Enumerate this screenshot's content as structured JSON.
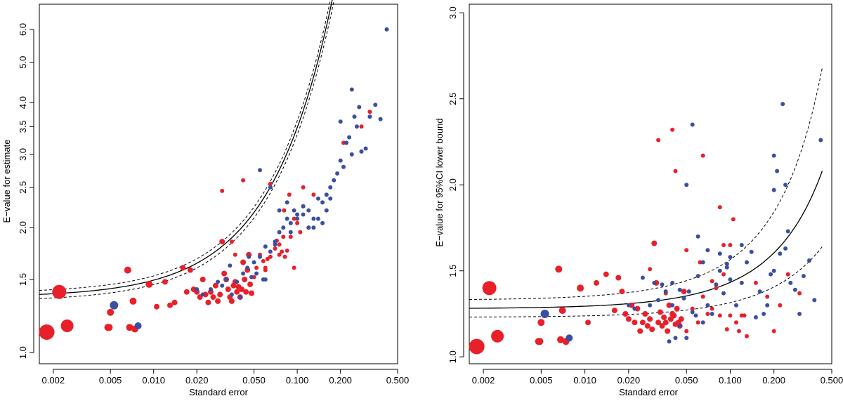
{
  "colors": {
    "red": "#e8202a",
    "blue": "#3a4fa0"
  },
  "chart_data": [
    {
      "type": "scatter",
      "title": "",
      "xlabel": "Standard error",
      "ylabel": "E−value for estimate",
      "x_scale": "log",
      "y_scale": "log",
      "xlim": [
        0.0016,
        0.5
      ],
      "ylim": [
        0.94,
        6.9
      ],
      "x_ticks": [
        0.002,
        0.005,
        0.01,
        0.02,
        0.05,
        0.1,
        0.2,
        0.5
      ],
      "x_tick_labels": [
        "0.002",
        "0.005",
        "0.010",
        "0.020",
        "0.050",
        "0.100",
        "0.200",
        "0.500"
      ],
      "y_ticks": [
        1.0,
        1.5,
        2.0,
        2.5,
        3.0,
        3.5,
        4.0,
        5.0,
        6.0
      ],
      "y_tick_labels": [
        "1.0",
        "1.5",
        "2.0",
        "2.5",
        "3.0",
        "3.5",
        "4.0",
        "5.0",
        "6.0"
      ],
      "fit": {
        "name": "fitted curve",
        "a": 1.36,
        "b": 9.4,
        "ci_width": 0.05
      },
      "series": [
        {
          "name": "red",
          "color": "red",
          "x": [
            0.0018,
            0.0022,
            0.0025,
            0.0048,
            0.005,
            0.0049,
            0.0066,
            0.0068,
            0.0072,
            0.0074,
            0.0093,
            0.0105,
            0.012,
            0.013,
            0.014,
            0.016,
            0.017,
            0.018,
            0.019,
            0.02,
            0.021,
            0.022,
            0.023,
            0.024,
            0.025,
            0.026,
            0.027,
            0.028,
            0.029,
            0.03,
            0.031,
            0.032,
            0.033,
            0.034,
            0.035,
            0.036,
            0.037,
            0.038,
            0.039,
            0.04,
            0.041,
            0.042,
            0.043,
            0.044,
            0.045,
            0.046,
            0.047,
            0.048,
            0.05,
            0.052,
            0.055,
            0.058,
            0.06,
            0.062,
            0.065,
            0.07,
            0.072,
            0.075,
            0.078,
            0.08,
            0.082,
            0.085,
            0.09,
            0.095,
            0.1,
            0.105,
            0.11,
            0.12,
            0.13,
            0.21,
            0.28,
            0.32,
            0.03,
            0.042,
            0.065,
            0.088,
            0.11,
            0.095,
            0.06,
            0.075,
            0.081,
            0.037,
            0.035
          ],
          "y": [
            1.12,
            1.4,
            1.16,
            1.15,
            1.25,
            1.15,
            1.58,
            1.15,
            1.33,
            1.14,
            1.46,
            1.29,
            1.48,
            1.3,
            1.32,
            1.6,
            1.4,
            1.58,
            1.42,
            1.4,
            1.36,
            1.5,
            1.38,
            1.32,
            1.4,
            1.36,
            1.45,
            1.33,
            1.38,
            1.85,
            1.55,
            1.5,
            1.42,
            1.36,
            1.33,
            1.45,
            1.48,
            1.4,
            1.44,
            1.36,
            1.42,
            1.65,
            1.5,
            1.4,
            1.58,
            1.72,
            1.46,
            1.39,
            1.52,
            1.6,
            1.72,
            1.66,
            1.6,
            1.68,
            1.7,
            1.78,
            1.86,
            1.82,
            1.75,
            1.9,
            1.7,
            1.76,
            1.9,
            1.6,
            2.05,
            1.95,
            2.25,
            2.0,
            2.4,
            3.2,
            3.5,
            3.8,
            2.45,
            2.6,
            2.55,
            2.4,
            2.5,
            2.1,
            1.58,
            1.72,
            2.2,
            1.72,
            1.85
          ],
          "size": [
            11,
            10,
            9,
            5,
            5,
            5,
            5,
            5,
            5,
            5,
            5,
            4,
            4,
            4,
            4,
            4,
            4,
            4,
            4,
            4,
            4,
            4,
            4,
            4,
            4,
            4,
            4,
            4,
            4,
            4,
            4,
            4,
            4,
            4,
            4,
            4,
            4,
            4,
            4,
            4,
            4,
            4,
            4,
            4,
            4,
            4,
            4,
            4,
            3,
            3,
            3,
            3,
            3,
            3,
            3,
            3,
            3,
            3,
            3,
            3,
            3,
            3,
            3,
            3,
            3,
            3,
            3,
            3,
            3,
            3,
            3,
            3,
            3,
            3,
            3,
            3,
            3,
            3,
            3,
            3,
            3,
            3,
            3
          ]
        },
        {
          "name": "blue",
          "color": "blue",
          "x": [
            0.0053,
            0.0078,
            0.02,
            0.022,
            0.025,
            0.028,
            0.03,
            0.032,
            0.035,
            0.038,
            0.04,
            0.042,
            0.045,
            0.048,
            0.05,
            0.052,
            0.055,
            0.058,
            0.06,
            0.065,
            0.07,
            0.075,
            0.08,
            0.085,
            0.09,
            0.095,
            0.1,
            0.11,
            0.12,
            0.13,
            0.14,
            0.15,
            0.16,
            0.17,
            0.18,
            0.19,
            0.2,
            0.21,
            0.22,
            0.23,
            0.24,
            0.25,
            0.26,
            0.27,
            0.28,
            0.3,
            0.32,
            0.35,
            0.38,
            0.42,
            0.055,
            0.065,
            0.075,
            0.085,
            0.1,
            0.12,
            0.14,
            0.16,
            0.2,
            0.24,
            0.28,
            0.034,
            0.046,
            0.06,
            0.07,
            0.09,
            0.11,
            0.13,
            0.15,
            0.17
          ],
          "y": [
            1.3,
            1.16,
            1.42,
            1.38,
            1.42,
            1.48,
            1.45,
            1.5,
            1.38,
            1.48,
            1.36,
            1.55,
            1.6,
            1.52,
            1.65,
            1.55,
            1.7,
            1.5,
            1.8,
            1.75,
            1.85,
            1.95,
            2.0,
            2.1,
            2.05,
            2.2,
            2.1,
            2.15,
            2.2,
            2.0,
            2.35,
            2.3,
            2.4,
            2.5,
            2.6,
            2.7,
            2.9,
            2.8,
            3.2,
            3.3,
            4.3,
            3.7,
            3.5,
            3.9,
            3.05,
            3.1,
            3.7,
            3.95,
            3.65,
            6.0,
            2.75,
            2.5,
            2.2,
            2.3,
            2.15,
            2.0,
            2.1,
            2.2,
            3.6,
            3.0,
            3.05,
            1.62,
            1.7,
            1.5,
            1.82,
            1.95,
            2.25,
            2.1,
            2.05,
            2.35
          ],
          "size": [
            6,
            5,
            3,
            3,
            3,
            3,
            3,
            3,
            3,
            3,
            3,
            3,
            3,
            3,
            3,
            3,
            3,
            3,
            3,
            3,
            3,
            3,
            3,
            3,
            3,
            3,
            3,
            3,
            3,
            3,
            3,
            3,
            3,
            3,
            3,
            3,
            3,
            3,
            3,
            3,
            3,
            3,
            3,
            3,
            3,
            3,
            3,
            3,
            3,
            3,
            3,
            3,
            3,
            3,
            3,
            3,
            3,
            3,
            3,
            3,
            3,
            3,
            3,
            3,
            3,
            3,
            3,
            3,
            3,
            3
          ]
        }
      ]
    },
    {
      "type": "scatter",
      "title": "",
      "xlabel": "Standard error",
      "ylabel": "E−value for 95%CI lower bound",
      "x_scale": "log",
      "y_scale": "linear",
      "xlim": [
        0.0016,
        0.5
      ],
      "ylim": [
        0.96,
        3.05
      ],
      "x_ticks": [
        0.002,
        0.005,
        0.01,
        0.02,
        0.05,
        0.1,
        0.2,
        0.5
      ],
      "x_tick_labels": [
        "0.002",
        "0.005",
        "0.010",
        "0.020",
        "0.050",
        "0.100",
        "0.200",
        "0.500"
      ],
      "y_ticks": [
        1.0,
        1.5,
        2.0,
        2.5,
        3.0
      ],
      "y_tick_labels": [
        "1.0",
        "1.5",
        "2.0",
        "2.5",
        "3.0"
      ],
      "fit": {
        "name": "fitted curve",
        "a": 1.28,
        "b": 1.13,
        "ci_low": [
          1.23,
          0.67
        ],
        "ci_high": [
          1.33,
          1.63
        ]
      },
      "series": [
        {
          "name": "red",
          "color": "red",
          "x": [
            0.0018,
            0.0022,
            0.0025,
            0.0048,
            0.005,
            0.0049,
            0.0066,
            0.0068,
            0.007,
            0.0074,
            0.0093,
            0.0105,
            0.012,
            0.014,
            0.016,
            0.017,
            0.018,
            0.019,
            0.02,
            0.021,
            0.022,
            0.023,
            0.024,
            0.025,
            0.026,
            0.027,
            0.028,
            0.029,
            0.03,
            0.031,
            0.032,
            0.033,
            0.034,
            0.035,
            0.036,
            0.037,
            0.038,
            0.039,
            0.04,
            0.041,
            0.042,
            0.043,
            0.044,
            0.045,
            0.046,
            0.048,
            0.05,
            0.055,
            0.06,
            0.065,
            0.07,
            0.075,
            0.08,
            0.085,
            0.09,
            0.095,
            0.1,
            0.105,
            0.11,
            0.12,
            0.13,
            0.15,
            0.18,
            0.2,
            0.22,
            0.25,
            0.3,
            0.032,
            0.04,
            0.042,
            0.065,
            0.085,
            0.1,
            0.062,
            0.028,
            0.036,
            0.05,
            0.075,
            0.09,
            0.125,
            0.115
          ],
          "y": [
            1.06,
            1.4,
            1.12,
            1.09,
            1.2,
            1.09,
            1.51,
            1.1,
            1.27,
            1.09,
            1.4,
            1.2,
            1.43,
            1.48,
            1.27,
            1.46,
            1.38,
            1.25,
            1.22,
            1.3,
            1.2,
            1.28,
            1.15,
            1.2,
            1.25,
            1.18,
            1.22,
            1.16,
            1.66,
            1.43,
            1.2,
            1.26,
            1.18,
            1.23,
            1.2,
            1.15,
            1.3,
            1.22,
            1.25,
            1.24,
            1.19,
            1.28,
            1.2,
            1.18,
            1.22,
            1.38,
            1.15,
            1.28,
            1.2,
            1.35,
            1.25,
            1.28,
            1.4,
            1.24,
            1.48,
            1.16,
            1.24,
            1.8,
            1.2,
            1.24,
            1.12,
            1.43,
            1.35,
            1.15,
            1.3,
            1.48,
            1.37,
            2.26,
            2.32,
            2.08,
            2.17,
            1.87,
            1.65,
            1.55,
            1.51,
            1.37,
            1.62,
            1.44,
            1.65,
            1.24,
            1.15
          ],
          "size": [
            11,
            10,
            9,
            5,
            5,
            5,
            5,
            5,
            5,
            5,
            5,
            4,
            4,
            4,
            4,
            4,
            4,
            4,
            4,
            4,
            4,
            4,
            4,
            4,
            4,
            4,
            4,
            4,
            4,
            4,
            4,
            4,
            4,
            4,
            4,
            4,
            4,
            4,
            4,
            4,
            4,
            4,
            4,
            4,
            4,
            4,
            3,
            3,
            3,
            3,
            3,
            3,
            3,
            3,
            3,
            3,
            3,
            3,
            3,
            3,
            3,
            3,
            3,
            3,
            3,
            3,
            3,
            3,
            3,
            3,
            3,
            3,
            3,
            3,
            3,
            3,
            3,
            3,
            3,
            3,
            3
          ]
        },
        {
          "name": "blue",
          "color": "blue",
          "x": [
            0.0053,
            0.0078,
            0.02,
            0.022,
            0.025,
            0.028,
            0.03,
            0.032,
            0.034,
            0.036,
            0.038,
            0.04,
            0.042,
            0.045,
            0.048,
            0.05,
            0.052,
            0.055,
            0.058,
            0.06,
            0.065,
            0.07,
            0.075,
            0.08,
            0.085,
            0.09,
            0.095,
            0.1,
            0.11,
            0.12,
            0.13,
            0.14,
            0.15,
            0.16,
            0.17,
            0.18,
            0.19,
            0.2,
            0.21,
            0.22,
            0.23,
            0.24,
            0.25,
            0.26,
            0.28,
            0.3,
            0.32,
            0.35,
            0.38,
            0.42,
            0.055,
            0.05,
            0.06,
            0.07,
            0.085,
            0.1,
            0.12,
            0.045,
            0.04,
            0.065,
            0.095,
            0.2,
            0.24,
            0.2
          ],
          "y": [
            1.25,
            1.11,
            1.3,
            1.28,
            1.46,
            1.3,
            1.43,
            1.33,
            1.42,
            1.38,
            1.09,
            1.43,
            1.11,
            1.18,
            1.34,
            1.11,
            1.38,
            1.26,
            1.24,
            1.47,
            1.2,
            1.3,
            1.25,
            1.42,
            1.6,
            1.37,
            1.52,
            1.45,
            1.3,
            1.43,
            1.55,
            1.61,
            1.23,
            1.38,
            1.25,
            1.3,
            1.48,
            2.17,
            2.08,
            1.6,
            2.47,
            1.63,
            1.73,
            1.43,
            1.39,
            1.25,
            1.47,
            1.56,
            1.33,
            2.26,
            2.35,
            2.0,
            1.7,
            1.62,
            1.5,
            1.58,
            1.65,
            1.39,
            1.3,
            1.55,
            1.54,
            1.97,
            2.0,
            1.5
          ],
          "size": [
            6,
            5,
            3,
            3,
            3,
            3,
            3,
            3,
            3,
            3,
            3,
            3,
            3,
            3,
            3,
            3,
            3,
            3,
            3,
            3,
            3,
            3,
            3,
            3,
            3,
            3,
            3,
            3,
            3,
            3,
            3,
            3,
            3,
            3,
            3,
            3,
            3,
            3,
            3,
            3,
            3,
            3,
            3,
            3,
            3,
            3,
            3,
            3,
            3,
            3,
            3,
            3,
            3,
            3,
            3,
            3,
            3,
            3,
            3,
            3,
            3,
            3,
            3,
            3
          ]
        }
      ]
    }
  ]
}
